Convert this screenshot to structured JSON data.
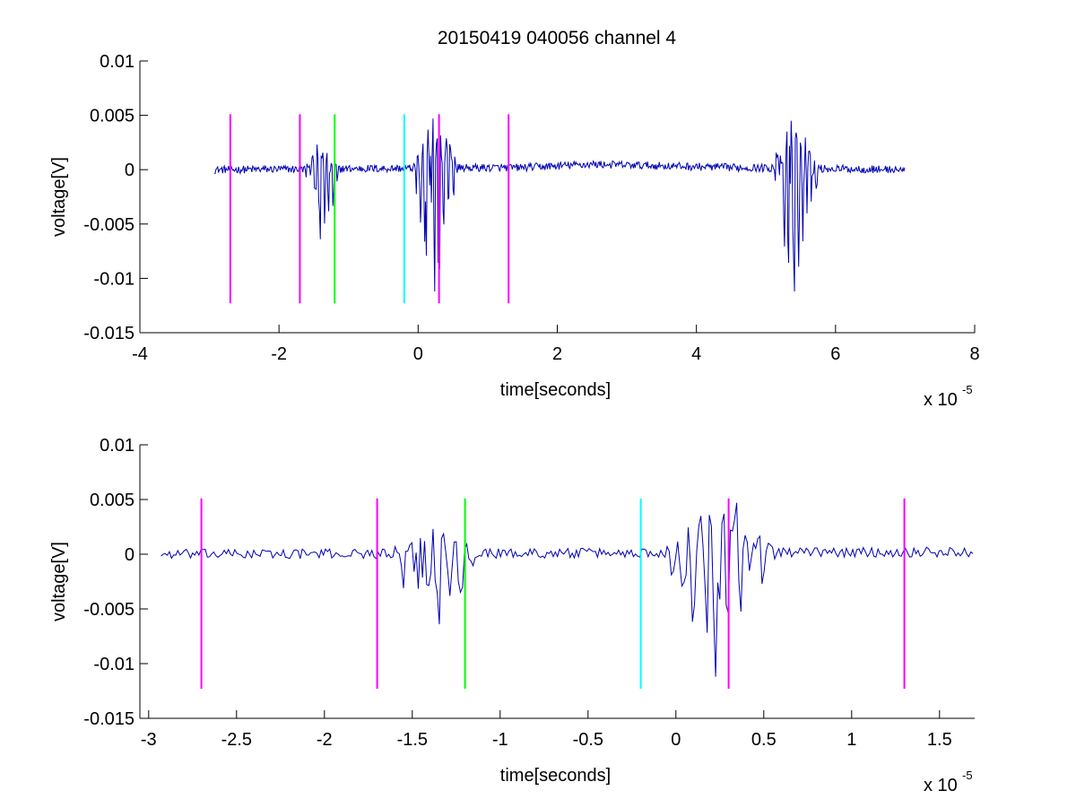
{
  "title": "20150419 040056 channel 4",
  "colors": {
    "signal": "#0000b3",
    "magenta": "#ff00ff",
    "green": "#00ff00",
    "cyan": "#00ffff",
    "axis": "#000000"
  },
  "chart_data": [
    {
      "type": "line",
      "title": "20150419 040056 channel 4",
      "xlabel": "time[seconds]",
      "ylabel": "voltage[V]",
      "x_exponent_label": "x 10",
      "x_exponent": "-5",
      "xlim": [
        -4,
        8
      ],
      "ylim": [
        -0.015,
        0.01
      ],
      "xticks": [
        -4,
        -2,
        0,
        2,
        4,
        6,
        8
      ],
      "xtick_labels": [
        "-4",
        "-2",
        "0",
        "2",
        "4",
        "6",
        "8"
      ],
      "yticks": [
        -0.015,
        -0.01,
        -0.005,
        0,
        0.005,
        0.01
      ],
      "ytick_labels": [
        "-0.015",
        "-0.01",
        "-0.005",
        "0",
        "0.005",
        "0.01"
      ],
      "grid": false,
      "signal": {
        "x_range": [
          -2.93,
          7.0
        ],
        "baseline_drift": [
          [
            -2.93,
            0.0
          ],
          [
            1.5,
            0.0002
          ],
          [
            2.5,
            0.0005
          ],
          [
            4.5,
            0.0002
          ],
          [
            7.0,
            0.0
          ]
        ],
        "noise_amplitude": 0.0004,
        "bursts": [
          {
            "center": -1.38,
            "width": 0.25,
            "min": -0.0064,
            "max": 0.0023
          },
          {
            "center": 0.25,
            "width": 0.32,
            "min": -0.0112,
            "max": 0.0047
          },
          {
            "center": 5.42,
            "width": 0.35,
            "min": -0.0112,
            "max": 0.0045
          }
        ]
      },
      "markers": [
        {
          "x": -2.7,
          "color": "magenta"
        },
        {
          "x": -1.7,
          "color": "magenta"
        },
        {
          "x": -1.2,
          "color": "green"
        },
        {
          "x": -0.2,
          "color": "cyan"
        },
        {
          "x": 0.3,
          "color": "magenta"
        },
        {
          "x": 1.3,
          "color": "magenta"
        }
      ],
      "marker_range": [
        -0.0123,
        0.0051
      ]
    },
    {
      "type": "line",
      "xlabel": "time[seconds]",
      "ylabel": "voltage[V]",
      "x_exponent_label": "x 10",
      "x_exponent": "-5",
      "xlim": [
        -3.05,
        1.7
      ],
      "ylim": [
        -0.015,
        0.01
      ],
      "xticks": [
        -3,
        -2.5,
        -2,
        -1.5,
        -1,
        -0.5,
        0,
        0.5,
        1,
        1.5
      ],
      "xtick_labels": [
        "-3",
        "-2.5",
        "-2",
        "-1.5",
        "-1",
        "-0.5",
        "0",
        "0.5",
        "1",
        "1.5"
      ],
      "yticks": [
        -0.015,
        -0.01,
        -0.005,
        0,
        0.005,
        0.01
      ],
      "ytick_labels": [
        "-0.015",
        "-0.01",
        "-0.005",
        "0",
        "0.005",
        "0.01"
      ],
      "grid": false,
      "signal": {
        "x_range": [
          -2.93,
          1.7
        ],
        "baseline_drift": [
          [
            -2.93,
            0.0
          ],
          [
            1.7,
            0.0002
          ]
        ],
        "noise_amplitude": 0.0005,
        "bursts": [
          {
            "center": -1.38,
            "width": 0.25,
            "min": -0.0064,
            "max": 0.0023
          },
          {
            "center": 0.25,
            "width": 0.32,
            "min": -0.0112,
            "max": 0.0047
          }
        ]
      },
      "markers": [
        {
          "x": -2.7,
          "color": "magenta"
        },
        {
          "x": -1.7,
          "color": "magenta"
        },
        {
          "x": -1.2,
          "color": "green"
        },
        {
          "x": -0.2,
          "color": "cyan"
        },
        {
          "x": 0.3,
          "color": "magenta"
        },
        {
          "x": 1.3,
          "color": "magenta"
        }
      ],
      "marker_range": [
        -0.0123,
        0.0051
      ]
    }
  ]
}
